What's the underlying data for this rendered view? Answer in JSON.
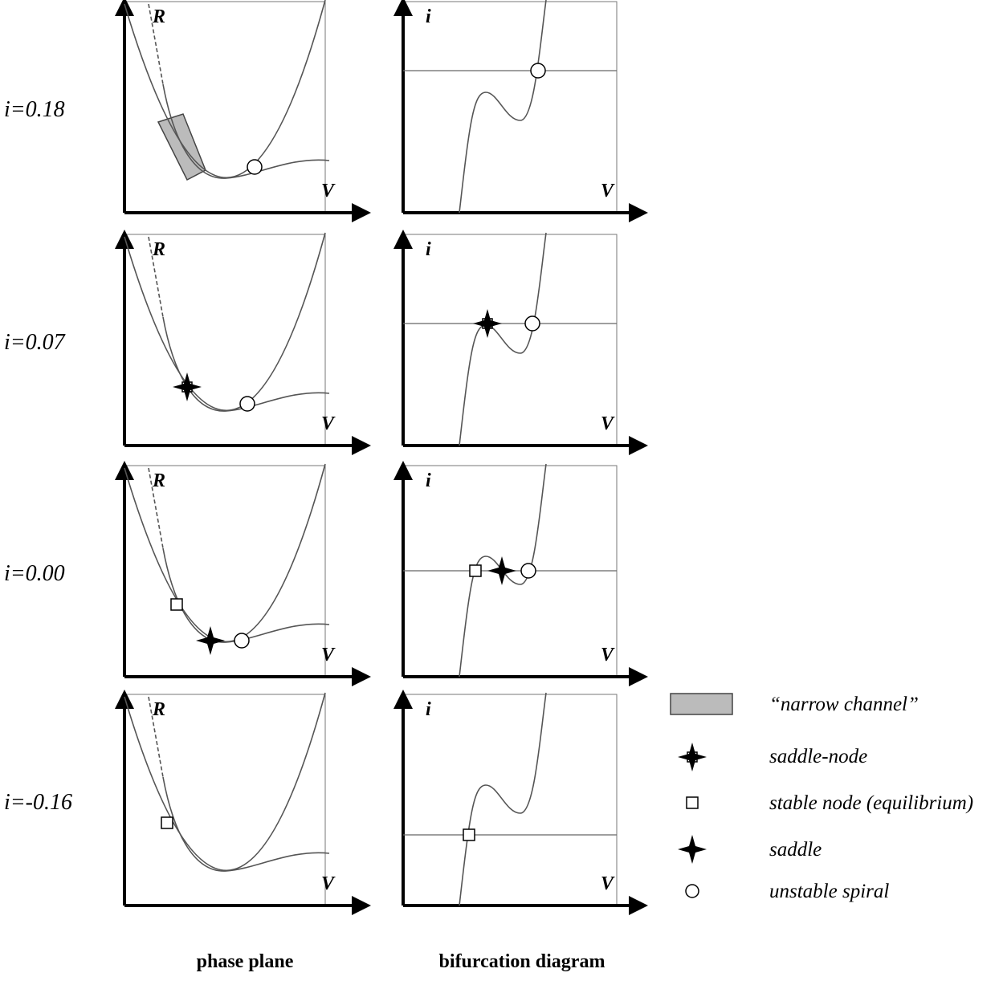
{
  "rows": [
    {
      "label": "i=0.18",
      "phase_y": "R",
      "phase_x": "V",
      "bif_y": "i",
      "bif_x": "V"
    },
    {
      "label": "i=0.07",
      "phase_y": "R",
      "phase_x": "V",
      "bif_y": "i",
      "bif_x": "V"
    },
    {
      "label": "i=0.00",
      "phase_y": "R",
      "phase_x": "V",
      "bif_y": "i",
      "bif_x": "V"
    },
    {
      "label": "i=-0.16",
      "phase_y": "R",
      "phase_x": "V",
      "bif_y": "i",
      "bif_x": "V"
    }
  ],
  "columns": [
    "phase plane",
    "bifurcation diagram"
  ],
  "legend": [
    "“narrow channel”",
    "saddle-node",
    "stable node (equilibrium)",
    "saddle",
    "unstable spiral"
  ]
}
